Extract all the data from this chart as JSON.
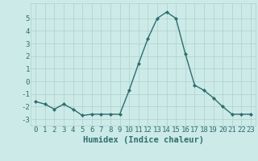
{
  "x": [
    0,
    1,
    2,
    3,
    4,
    5,
    6,
    7,
    8,
    9,
    10,
    11,
    12,
    13,
    14,
    15,
    16,
    17,
    18,
    19,
    20,
    21,
    22,
    23
  ],
  "y": [
    -1.6,
    -1.8,
    -2.2,
    -1.8,
    -2.2,
    -2.7,
    -2.6,
    -2.6,
    -2.6,
    -2.6,
    -0.7,
    1.4,
    3.4,
    5.0,
    5.5,
    5.0,
    2.2,
    -0.3,
    -0.7,
    -1.3,
    -2.0,
    -2.6,
    -2.6,
    -2.6
  ],
  "line_color": "#2d6e6e",
  "marker": "D",
  "marker_size": 2,
  "bg_color": "#cceae8",
  "grid_color": "#aed0ce",
  "xlabel": "Humidex (Indice chaleur)",
  "xlim": [
    -0.5,
    23.5
  ],
  "ylim": [
    -3.5,
    6.2
  ],
  "yticks": [
    -3,
    -2,
    -1,
    0,
    1,
    2,
    3,
    4,
    5
  ],
  "xticks": [
    0,
    1,
    2,
    3,
    4,
    5,
    6,
    7,
    8,
    9,
    10,
    11,
    12,
    13,
    14,
    15,
    16,
    17,
    18,
    19,
    20,
    21,
    22,
    23
  ],
  "tick_fontsize": 6.5,
  "xlabel_fontsize": 7.5,
  "line_width": 1.0
}
